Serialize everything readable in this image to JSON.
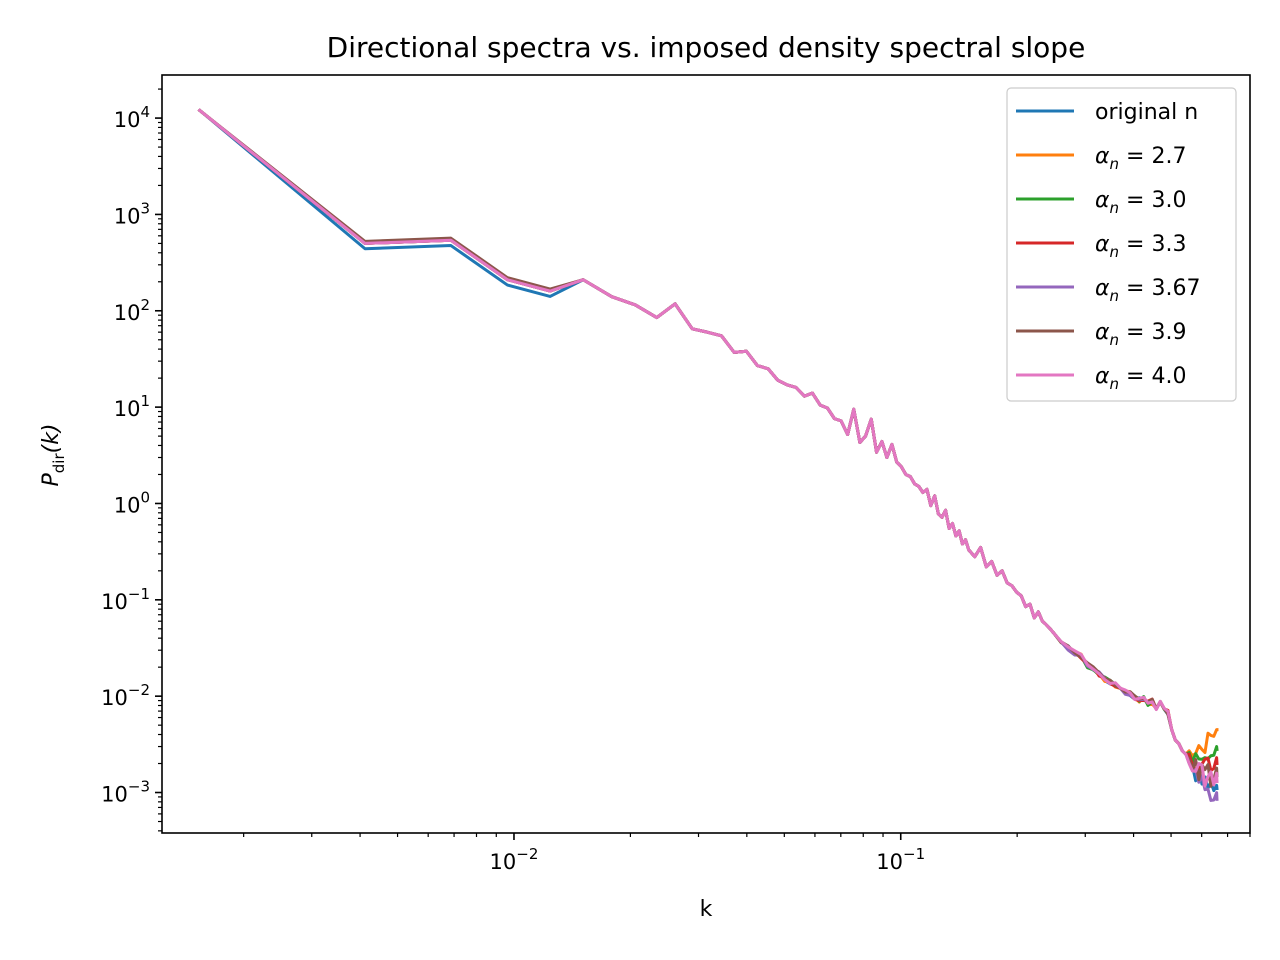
{
  "chart_data": {
    "type": "line",
    "title": "Directional spectra vs. imposed density spectral slope",
    "xlabel": "k",
    "ylabel": "P_dir(k)",
    "ylabel_main": "P",
    "ylabel_sub": "dir",
    "ylabel_paren": "(k)",
    "xscale": "log",
    "yscale": "log",
    "xlim": [
      0.00123,
      0.8
    ],
    "ylim": [
      0.00038,
      28000
    ],
    "grid": false,
    "legend_position": "upper right",
    "x_tick_labels": [
      {
        "base": "10",
        "exp": "−2",
        "value": 0.01
      },
      {
        "base": "10",
        "exp": "−1",
        "value": 0.1
      }
    ],
    "y_tick_labels": [
      {
        "base": "10",
        "exp": "4",
        "value": 10000
      },
      {
        "base": "10",
        "exp": "3",
        "value": 1000
      },
      {
        "base": "10",
        "exp": "2",
        "value": 100
      },
      {
        "base": "10",
        "exp": "1",
        "value": 10
      },
      {
        "base": "10",
        "exp": "0",
        "value": 1
      },
      {
        "base": "10",
        "exp": "−1",
        "value": 0.1
      },
      {
        "base": "10",
        "exp": "−2",
        "value": 0.01
      },
      {
        "base": "10",
        "exp": "−3",
        "value": 0.001
      }
    ],
    "series": [
      {
        "name": "original n",
        "label_symbol": "",
        "label_eq": "",
        "color": "#1f77b4",
        "tail_end": 0.0011,
        "tail_max": 0.0024
      },
      {
        "name": "αn = 2.7",
        "label_symbol": "α",
        "label_sub": "n",
        "label_eq": " = 2.7",
        "color": "#ff7f0e",
        "tail_end": 0.0045,
        "tail_max": 0.0045
      },
      {
        "name": "αn = 3.0",
        "label_symbol": "α",
        "label_sub": "n",
        "label_eq": " = 3.0",
        "color": "#2ca02c",
        "tail_end": 0.0028,
        "tail_max": 0.003
      },
      {
        "name": "αn = 3.3",
        "label_symbol": "α",
        "label_sub": "n",
        "label_eq": " = 3.3",
        "color": "#d62728",
        "tail_end": 0.002,
        "tail_max": 0.0025
      },
      {
        "name": "αn = 3.67",
        "label_symbol": "α",
        "label_sub": "n",
        "label_eq": " = 3.67",
        "color": "#9467bd",
        "tail_end": 0.00085,
        "tail_max": 0.002
      },
      {
        "name": "αn = 3.9",
        "label_symbol": "α",
        "label_sub": "n",
        "label_eq": " = 3.9",
        "color": "#8c564b",
        "tail_end": 0.0015,
        "tail_max": 0.0022
      },
      {
        "name": "αn = 4.0",
        "label_symbol": "α",
        "label_sub": "n",
        "label_eq": " = 4.0",
        "color": "#e377c2",
        "tail_end": 0.0013,
        "tail_max": 0.002
      }
    ],
    "common_curve": [
      [
        0.00154,
        12000
      ],
      [
        0.00412,
        500
      ],
      [
        0.00687,
        540
      ],
      [
        0.00962,
        210
      ],
      [
        0.0124,
        160
      ],
      [
        0.0151,
        210
      ],
      [
        0.0179,
        140
      ],
      [
        0.0206,
        115
      ],
      [
        0.0234,
        85
      ],
      [
        0.0261,
        118
      ],
      [
        0.0289,
        65
      ],
      [
        0.0316,
        60
      ],
      [
        0.0344,
        55
      ],
      [
        0.0371,
        37
      ],
      [
        0.0399,
        38
      ],
      [
        0.0426,
        27
      ],
      [
        0.0454,
        25
      ],
      [
        0.0481,
        19
      ],
      [
        0.0509,
        17
      ],
      [
        0.0536,
        16
      ],
      [
        0.0564,
        13
      ],
      [
        0.0591,
        14
      ],
      [
        0.0619,
        10.5
      ],
      [
        0.0646,
        9.8
      ],
      [
        0.0674,
        7.6
      ],
      [
        0.0701,
        7.2
      ],
      [
        0.0729,
        5.2
      ],
      [
        0.0756,
        9.5
      ],
      [
        0.0784,
        4.3
      ],
      [
        0.0811,
        5.0
      ],
      [
        0.0839,
        7.5
      ],
      [
        0.0866,
        3.4
      ],
      [
        0.0894,
        4.4
      ],
      [
        0.0921,
        3.0
      ],
      [
        0.0949,
        4.1
      ],
      [
        0.0976,
        2.7
      ],
      [
        0.1004,
        2.4
      ],
      [
        0.1031,
        2.0
      ],
      [
        0.1059,
        1.9
      ],
      [
        0.1086,
        1.6
      ],
      [
        0.1114,
        1.5
      ],
      [
        0.1141,
        1.3
      ],
      [
        0.1169,
        1.4
      ],
      [
        0.1196,
        0.95
      ],
      [
        0.1224,
        1.2
      ],
      [
        0.1251,
        0.78
      ],
      [
        0.1279,
        0.72
      ],
      [
        0.1306,
        0.85
      ],
      [
        0.1334,
        0.55
      ],
      [
        0.1361,
        0.62
      ],
      [
        0.1389,
        0.46
      ],
      [
        0.1416,
        0.52
      ],
      [
        0.1444,
        0.38
      ],
      [
        0.1471,
        0.42
      ],
      [
        0.1499,
        0.33
      ],
      [
        0.1554,
        0.28
      ],
      [
        0.1609,
        0.35
      ],
      [
        0.1664,
        0.22
      ],
      [
        0.1719,
        0.25
      ],
      [
        0.1774,
        0.18
      ],
      [
        0.1829,
        0.2
      ],
      [
        0.1884,
        0.15
      ],
      [
        0.1939,
        0.14
      ],
      [
        0.1994,
        0.12
      ],
      [
        0.2049,
        0.11
      ],
      [
        0.2104,
        0.085
      ],
      [
        0.2159,
        0.09
      ],
      [
        0.2214,
        0.065
      ],
      [
        0.2269,
        0.075
      ],
      [
        0.2324,
        0.06
      ],
      [
        0.2379,
        0.055
      ],
      [
        0.2434,
        0.05
      ],
      [
        0.2489,
        0.045
      ],
      [
        0.2599,
        0.037
      ],
      [
        0.2709,
        0.032
      ],
      [
        0.2819,
        0.028
      ],
      [
        0.2929,
        0.026
      ],
      [
        0.3039,
        0.021
      ],
      [
        0.3149,
        0.019
      ],
      [
        0.3259,
        0.017
      ],
      [
        0.3369,
        0.015
      ],
      [
        0.3479,
        0.014
      ],
      [
        0.3589,
        0.013
      ],
      [
        0.3699,
        0.012
      ],
      [
        0.3809,
        0.011
      ],
      [
        0.3919,
        0.0105
      ],
      [
        0.4029,
        0.0098
      ],
      [
        0.4139,
        0.0092
      ],
      [
        0.4249,
        0.0095
      ],
      [
        0.4359,
        0.0085
      ],
      [
        0.4469,
        0.0088
      ],
      [
        0.4579,
        0.0075
      ],
      [
        0.4689,
        0.0085
      ],
      [
        0.4799,
        0.0075
      ],
      [
        0.4909,
        0.0068
      ],
      [
        0.5019,
        0.0045
      ],
      [
        0.5129,
        0.0035
      ],
      [
        0.5239,
        0.0032
      ],
      [
        0.5349,
        0.0027
      ],
      [
        0.5459,
        0.0025
      ],
      [
        0.5569,
        0.0022
      ],
      [
        0.5679,
        0.0021
      ],
      [
        0.5789,
        0.002
      ],
      [
        0.5899,
        0.0019
      ],
      [
        0.6009,
        0.0018
      ],
      [
        0.6119,
        0.0017
      ],
      [
        0.6229,
        0.0017
      ],
      [
        0.6339,
        0.0016
      ],
      [
        0.6449,
        0.0015
      ],
      [
        0.6559,
        0.0016
      ]
    ]
  }
}
